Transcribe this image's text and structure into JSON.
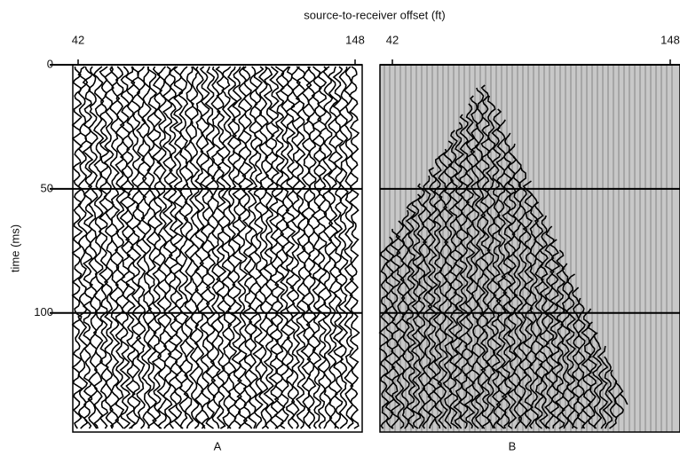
{
  "chart_data": [
    {
      "type": "seismic",
      "xlabel": "source-to-receiver offset (ft)",
      "ylabel": "time (ms)",
      "panel_label": "A",
      "xlim": [
        42,
        148
      ],
      "xticks": [
        42,
        148
      ],
      "ylim": [
        0,
        148
      ],
      "yticks": [
        0,
        50,
        100
      ],
      "y_inverted": true
    },
    {
      "type": "seismic",
      "panel_label": "B",
      "background": "#c8c8c8",
      "xlim": [
        42,
        148
      ],
      "xticks": [
        42,
        148
      ],
      "ylim": [
        0,
        148
      ],
      "yticks": [
        0,
        50,
        100
      ],
      "y_inverted": true
    }
  ]
}
